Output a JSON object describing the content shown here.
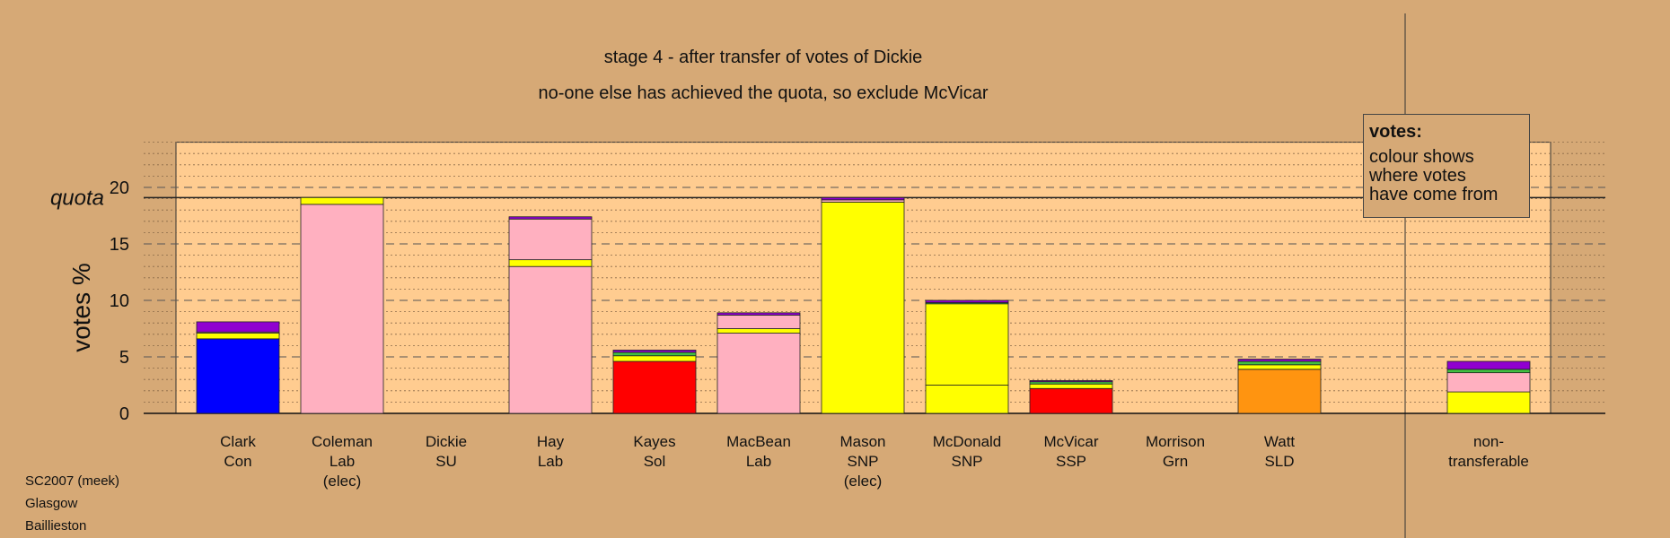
{
  "chart_data": {
    "type": "bar",
    "title": "stage 4 - after transfer of votes of Dickie",
    "subtitle": "no-one else has achieved the quota, so exclude McVicar",
    "ylabel": "votes %",
    "ylim": [
      0,
      24
    ],
    "yticks": [
      0,
      5,
      10,
      15,
      20
    ],
    "quota": 19.1,
    "quota_label": "quota",
    "grid": true,
    "legend_placement": "top-right",
    "colors": {
      "Con": "#0000ff",
      "Lab": "#ffb0c0",
      "SNP": "#ffff00",
      "Sol": "#ff0000",
      "SSP": "#ff0000",
      "SLD": "#ff9410",
      "Grn": "#40c040",
      "SU": "#9000d0"
    },
    "candidates": [
      {
        "name": "Clark",
        "party": "Con",
        "extra": "",
        "segments": [
          {
            "from": "Con",
            "value": 6.6
          },
          {
            "from": "SNP",
            "value": 0.5
          },
          {
            "from": "Lab",
            "value": 0.1
          },
          {
            "from": "SU",
            "value": 0.9
          }
        ]
      },
      {
        "name": "Coleman",
        "party": "Lab",
        "extra": "(elec)",
        "segments": [
          {
            "from": "Lab",
            "value": 18.5
          },
          {
            "from": "SNP",
            "value": 0.6
          }
        ]
      },
      {
        "name": "Dickie",
        "party": "SU",
        "extra": "",
        "segments": []
      },
      {
        "name": "Hay",
        "party": "Lab",
        "extra": "",
        "segments": [
          {
            "from": "Lab",
            "value": 13.0
          },
          {
            "from": "SNP",
            "value": 0.6
          },
          {
            "from": "Lab",
            "value": 3.6
          },
          {
            "from": "SU",
            "value": 0.2
          }
        ]
      },
      {
        "name": "Kayes",
        "party": "Sol",
        "extra": "",
        "segments": [
          {
            "from": "Sol",
            "value": 4.6
          },
          {
            "from": "SNP",
            "value": 0.5
          },
          {
            "from": "Grn",
            "value": 0.3
          },
          {
            "from": "SU",
            "value": 0.2
          }
        ]
      },
      {
        "name": "MacBean",
        "party": "Lab",
        "extra": "",
        "segments": [
          {
            "from": "Lab",
            "value": 7.1
          },
          {
            "from": "SNP",
            "value": 0.4
          },
          {
            "from": "Lab",
            "value": 1.2
          },
          {
            "from": "SU",
            "value": 0.2
          }
        ]
      },
      {
        "name": "Mason",
        "party": "SNP",
        "extra": "(elec)",
        "segments": [
          {
            "from": "SNP",
            "value": 18.7
          },
          {
            "from": "Lab",
            "value": 0.2
          },
          {
            "from": "SU",
            "value": 0.2
          }
        ]
      },
      {
        "name": "McDonald",
        "party": "SNP",
        "extra": "",
        "segments": [
          {
            "from": "SNP",
            "value": 2.5
          },
          {
            "from": "SNP",
            "value": 7.2
          },
          {
            "from": "Grn",
            "value": 0.1
          },
          {
            "from": "SU",
            "value": 0.2
          }
        ]
      },
      {
        "name": "McVicar",
        "party": "SSP",
        "extra": "",
        "segments": [
          {
            "from": "SSP",
            "value": 2.2
          },
          {
            "from": "SNP",
            "value": 0.4
          },
          {
            "from": "Grn",
            "value": 0.2
          },
          {
            "from": "SU",
            "value": 0.1
          }
        ]
      },
      {
        "name": "Morrison",
        "party": "Grn",
        "extra": "",
        "segments": []
      },
      {
        "name": "Watt",
        "party": "SLD",
        "extra": "",
        "segments": [
          {
            "from": "SLD",
            "value": 3.9
          },
          {
            "from": "SNP",
            "value": 0.4
          },
          {
            "from": "Grn",
            "value": 0.3
          },
          {
            "from": "SU",
            "value": 0.2
          }
        ]
      }
    ],
    "nontransferable": {
      "label_line1": "non-",
      "label_line2": "transferable",
      "segments": [
        {
          "from": "SNP",
          "value": 1.9
        },
        {
          "from": "Lab",
          "value": 1.7
        },
        {
          "from": "Grn",
          "value": 0.3
        },
        {
          "from": "SU",
          "value": 0.7
        }
      ]
    }
  },
  "legend": {
    "title": "votes:",
    "lines": [
      "colour shows",
      "where votes",
      "have come from"
    ]
  },
  "footer": {
    "line1": "SC2007 (meek)",
    "line2": "Glasgow",
    "line3": "Baillieston"
  }
}
